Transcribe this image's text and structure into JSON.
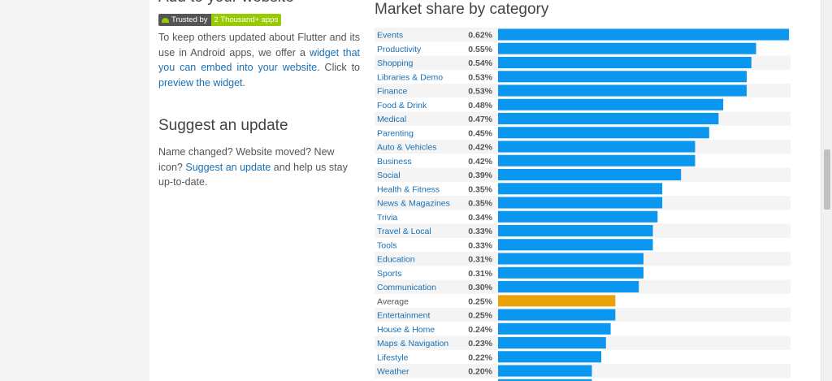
{
  "left": {
    "partial_title": "Add to your website",
    "badge": {
      "left": "Trusted by",
      "right": "2 Thousand+ apps"
    },
    "widget_paragraph": {
      "t1": "To keep others updated about Flutter and its use in Android apps, we offer a ",
      "link1": "widget that you can embed into your website",
      "t2": ". Click to ",
      "link2": "preview the widget",
      "t3": "."
    },
    "suggest_title": "Suggest an update",
    "suggest_paragraph": {
      "t1": "Name changed? Website moved? New icon? ",
      "link": "Suggest an update",
      "t2": " and help us stay up-to-date."
    }
  },
  "colors": {
    "bar": "#0b96ef",
    "average": "#e8a30b",
    "link": "#1a6fb3"
  },
  "chart_data": {
    "type": "bar",
    "orientation": "horizontal",
    "title": "Market share by category",
    "categories": [
      "Events",
      "Productivity",
      "Shopping",
      "Libraries & Demo",
      "Finance",
      "Food & Drink",
      "Medical",
      "Parenting",
      "Auto & Vehicles",
      "Business",
      "Social",
      "Health & Fitness",
      "News & Magazines",
      "Trivia",
      "Travel & Local",
      "Tools",
      "Education",
      "Sports",
      "Communication",
      "Average",
      "Entertainment",
      "House & Home",
      "Maps & Navigation",
      "Lifestyle",
      "Weather"
    ],
    "values": [
      0.62,
      0.55,
      0.54,
      0.53,
      0.53,
      0.48,
      0.47,
      0.45,
      0.42,
      0.42,
      0.39,
      0.35,
      0.35,
      0.34,
      0.33,
      0.33,
      0.31,
      0.31,
      0.3,
      0.25,
      0.25,
      0.24,
      0.23,
      0.22,
      0.2
    ],
    "value_labels": [
      "0.62%",
      "0.55%",
      "0.54%",
      "0.53%",
      "0.53%",
      "0.48%",
      "0.47%",
      "0.45%",
      "0.42%",
      "0.42%",
      "0.39%",
      "0.35%",
      "0.35%",
      "0.34%",
      "0.33%",
      "0.33%",
      "0.31%",
      "0.31%",
      "0.30%",
      "0.25%",
      "0.25%",
      "0.24%",
      "0.23%",
      "0.22%",
      "0.20%"
    ],
    "highlight": "Average",
    "unit": "%"
  }
}
